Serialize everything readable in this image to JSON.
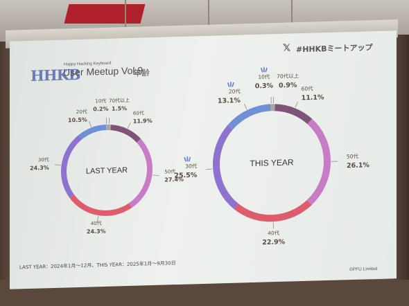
{
  "screen": {
    "brand_logo": "HHKB",
    "brand_sub": "Happy Hacking Keyboard",
    "brand_main": "User Meetup Vol.9",
    "heading": "年齢",
    "x_icon": "x-logo-icon",
    "hashtag": "#HHKBミートアップ",
    "footnote": "LAST YEAR：2024年1月～12月、THIS YEAR：2025年1月～9月30日",
    "copyright": "©PFU Limited"
  },
  "colors": {
    "10代": "#d4a35c",
    "20代": "#6f8fd6",
    "30代": "#8e72cf",
    "40代": "#df5c6c",
    "50代": "#c77cc6",
    "60代": "#7e5478",
    "70代以上": "#a8a6a8"
  },
  "chart_data": [
    {
      "type": "pie",
      "title": "LAST YEAR",
      "categories": [
        "10代",
        "20代",
        "30代",
        "40代",
        "50代",
        "60代",
        "70代以上"
      ],
      "values": [
        0.2,
        10.5,
        24.3,
        24.3,
        27.4,
        11.9,
        1.5
      ],
      "value_labels": [
        "0.2%",
        "10.5%",
        "24.3%",
        "24.3%",
        "27.4%",
        "11.9%",
        "1.5%"
      ],
      "order_clockwise_from_top": [
        "70代以上",
        "60代",
        "50代",
        "40代",
        "30代",
        "20代",
        "10代"
      ]
    },
    {
      "type": "pie",
      "title": "THIS YEAR",
      "categories": [
        "10代",
        "20代",
        "30代",
        "40代",
        "50代",
        "60代",
        "70代以上"
      ],
      "values": [
        0.3,
        13.1,
        25.5,
        22.9,
        26.1,
        11.1,
        0.9
      ],
      "value_labels": [
        "0.3%",
        "13.1%",
        "25.5%",
        "22.9%",
        "26.1%",
        "11.1%",
        "0.9%"
      ],
      "order_clockwise_from_top": [
        "70代以上",
        "60代",
        "50代",
        "40代",
        "30代",
        "20代",
        "10代"
      ],
      "highlighted_increases": [
        "10代",
        "20代",
        "30代"
      ]
    }
  ]
}
